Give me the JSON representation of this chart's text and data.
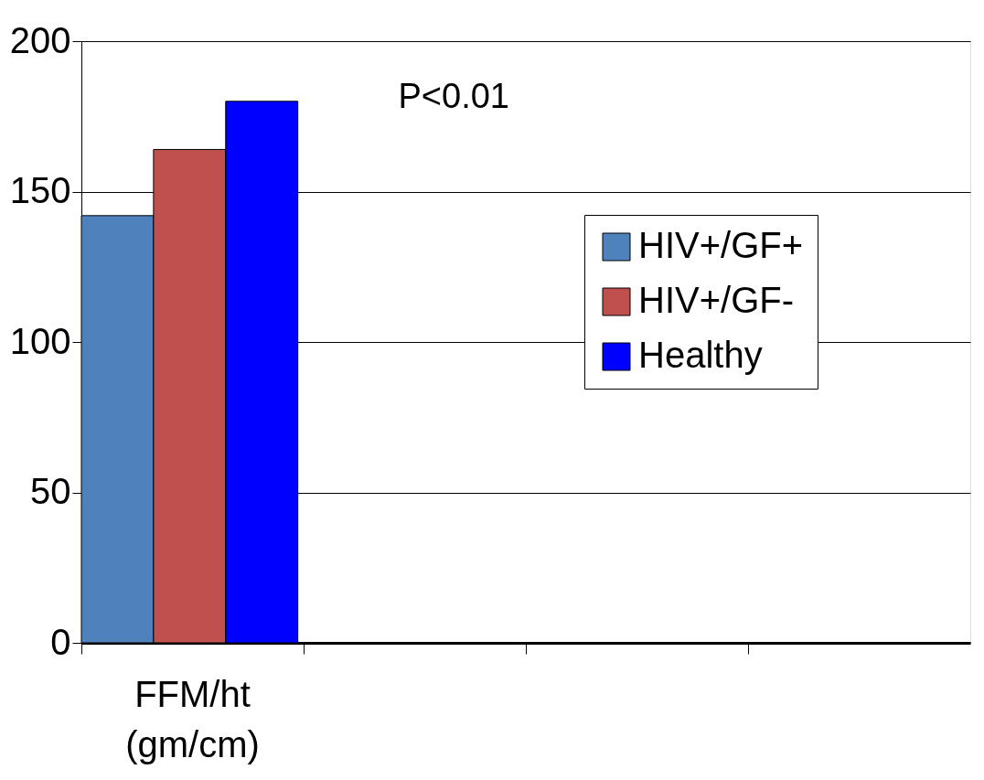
{
  "chart_data": {
    "type": "bar",
    "categories": [
      "FFM/ht (gm/cm)",
      null,
      null,
      null
    ],
    "series": [
      {
        "name": "HIV+/GF+",
        "color": "#4f81bd",
        "values": [
          142,
          null,
          null,
          null
        ]
      },
      {
        "name": "HIV+/GF-",
        "color": "#c0504d",
        "values": [
          164,
          null,
          null,
          null
        ]
      },
      {
        "name": "Healthy",
        "color": "#0000ff",
        "values": [
          180,
          null,
          null,
          null
        ]
      }
    ],
    "ylim": [
      0,
      200
    ],
    "yticks": [
      0,
      50,
      100,
      150,
      200
    ],
    "grid": "y",
    "legend": "right",
    "annotations": [
      "P<0.01"
    ]
  }
}
